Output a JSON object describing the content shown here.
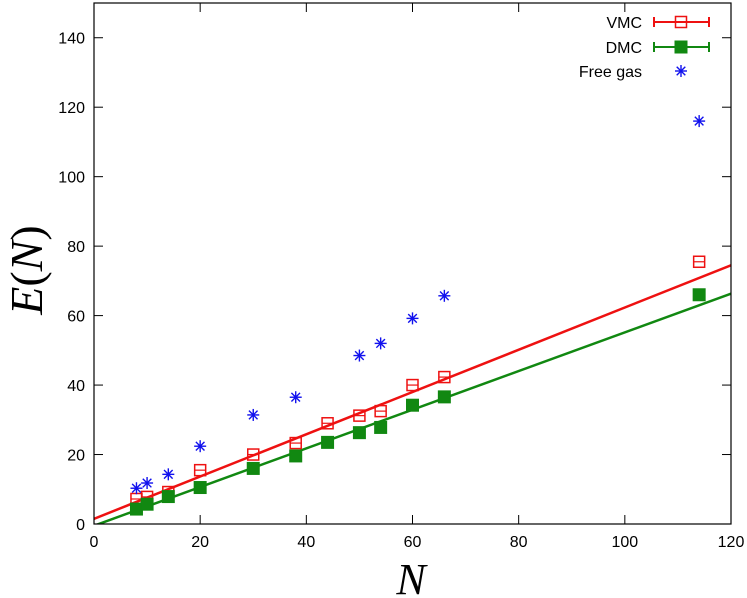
{
  "chart_data": {
    "type": "scatter",
    "xlabel": "N",
    "ylabel": {
      "func": "E",
      "open": "(",
      "var": "N",
      "close": ")"
    },
    "xlim": [
      0,
      120
    ],
    "ylim": [
      0,
      150
    ],
    "xticks": [
      0,
      20,
      40,
      60,
      80,
      100,
      120
    ],
    "yticks": [
      0,
      20,
      40,
      60,
      80,
      100,
      120,
      140
    ],
    "grid": false,
    "legend_position": "top-right",
    "series": [
      {
        "name": "VMC",
        "color": "#ee1111",
        "marker": "open-square-errorbar",
        "points": [
          [
            8,
            7.2
          ],
          [
            10,
            7.8
          ],
          [
            14,
            9.2
          ],
          [
            20,
            15.5
          ],
          [
            30,
            20.0
          ],
          [
            38,
            23.3
          ],
          [
            44,
            29.0
          ],
          [
            50,
            31.2
          ],
          [
            54,
            32.5
          ],
          [
            60,
            40.0
          ],
          [
            66,
            42.3
          ],
          [
            114,
            75.5
          ]
        ]
      },
      {
        "name": "DMC",
        "color": "#118811",
        "marker": "filled-square-errorbar",
        "points": [
          [
            8,
            4.3
          ],
          [
            10,
            5.7
          ],
          [
            14,
            7.9
          ],
          [
            20,
            10.5
          ],
          [
            30,
            16.0
          ],
          [
            38,
            19.6
          ],
          [
            44,
            23.5
          ],
          [
            50,
            26.3
          ],
          [
            54,
            27.8
          ],
          [
            60,
            34.2
          ],
          [
            66,
            36.6
          ],
          [
            114,
            66.0
          ]
        ]
      },
      {
        "name": "Free gas",
        "color": "#1111ee",
        "marker": "asterisk",
        "points": [
          [
            8,
            10.3
          ],
          [
            10,
            11.8
          ],
          [
            14,
            14.3
          ],
          [
            20,
            22.4
          ],
          [
            30,
            31.4
          ],
          [
            38,
            36.5
          ],
          [
            50,
            48.5
          ],
          [
            54,
            52.0
          ],
          [
            60,
            59.2
          ],
          [
            66,
            65.7
          ],
          [
            114,
            116.0
          ]
        ]
      }
    ],
    "fit_lines": [
      {
        "series": "VMC",
        "color": "#ee1111",
        "from": [
          0,
          1.5
        ],
        "to": [
          120,
          74.5
        ]
      },
      {
        "series": "DMC",
        "color": "#118811",
        "from": [
          0,
          -0.5
        ],
        "to": [
          120,
          66.3
        ]
      }
    ]
  }
}
